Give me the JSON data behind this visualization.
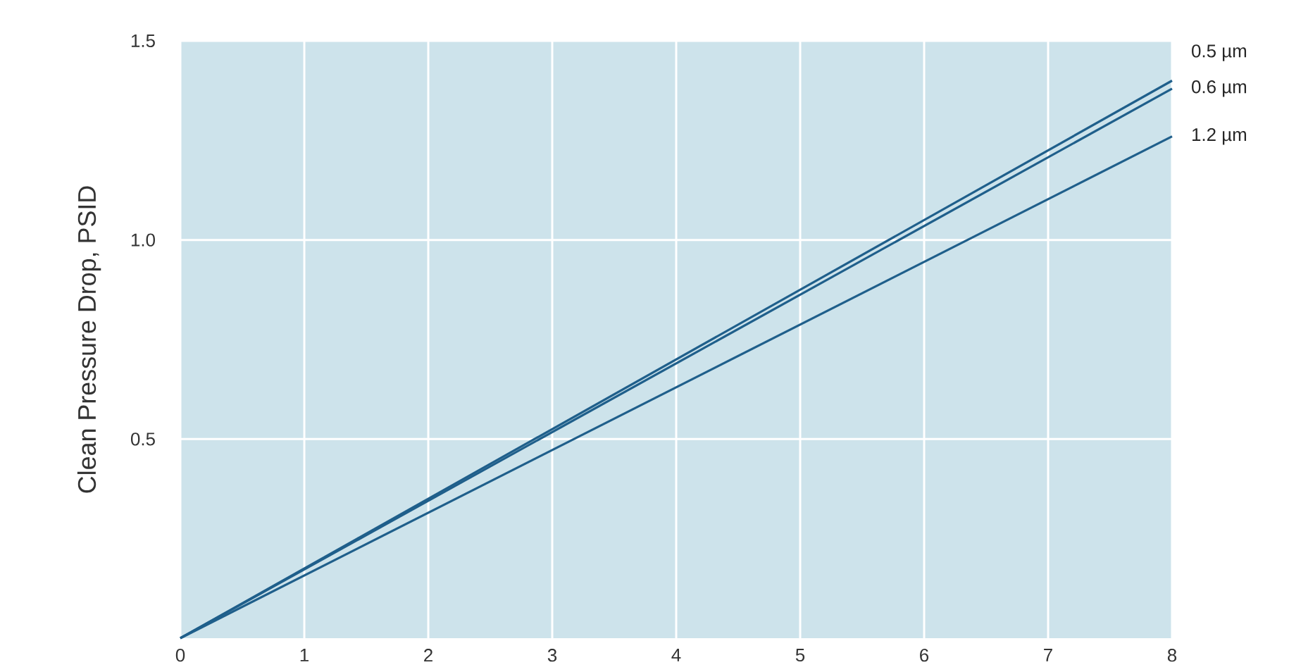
{
  "chart_data": {
    "type": "line",
    "ylabel": "Clean Pressure Drop, PSID",
    "xlim": [
      0,
      8
    ],
    "ylim": [
      0,
      1.5
    ],
    "xticks": [
      0,
      1,
      2,
      3,
      4,
      5,
      6,
      7,
      8
    ],
    "yticks": [
      0.5,
      {
        "value": 1.0,
        "label": "1.0"
      },
      1.5
    ],
    "grid": true,
    "line_style": "solid",
    "x": [
      0,
      8
    ],
    "series": [
      {
        "name": "0.5 µm",
        "color": "#1f5f8b",
        "values": [
          0,
          1.4
        ]
      },
      {
        "name": "0.6 µm",
        "color": "#1f5f8b",
        "values": [
          0,
          1.38
        ]
      },
      {
        "name": "1.2 µm",
        "color": "#1f5f8b",
        "values": [
          0,
          1.26
        ]
      }
    ]
  }
}
